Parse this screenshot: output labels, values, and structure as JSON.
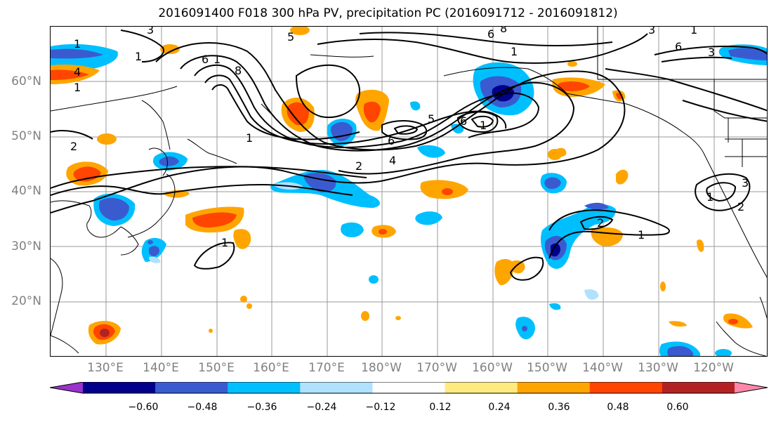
{
  "title": "2016091400 F018 300 hPa PV, precipitation PC (2016091712 - 2016091812)",
  "lat_labels": [
    "60°N",
    "50°N",
    "40°N",
    "30°N",
    "20°N"
  ],
  "lon_labels": [
    "130°E",
    "140°E",
    "150°E",
    "160°E",
    "170°E",
    "180°W",
    "170°W",
    "160°W",
    "150°W",
    "140°W",
    "130°W",
    "120°W"
  ],
  "colorbar": {
    "labels": [
      "−0.60",
      "−0.48",
      "−0.36",
      "−0.24",
      "−0.12",
      "0.12",
      "0.24",
      "0.36",
      "0.48",
      "0.60"
    ],
    "colors": [
      "#9933cc",
      "#00008b",
      "#3a5bd0",
      "#00bfff",
      "#b0e2ff",
      "#ffffff",
      "#ffeb80",
      "#ffa500",
      "#ff4500",
      "#b22222",
      "#ff88aa"
    ]
  },
  "contour_labels": [
    "3",
    "1",
    "1",
    "1",
    "4",
    "6",
    "8",
    "1",
    "6",
    "8",
    "1",
    "5",
    "6",
    "4",
    "2",
    "5",
    "6",
    "1",
    "3",
    "1",
    "6",
    "3",
    "1",
    "2",
    "3",
    "1",
    "1",
    "2",
    "1",
    "2"
  ]
}
